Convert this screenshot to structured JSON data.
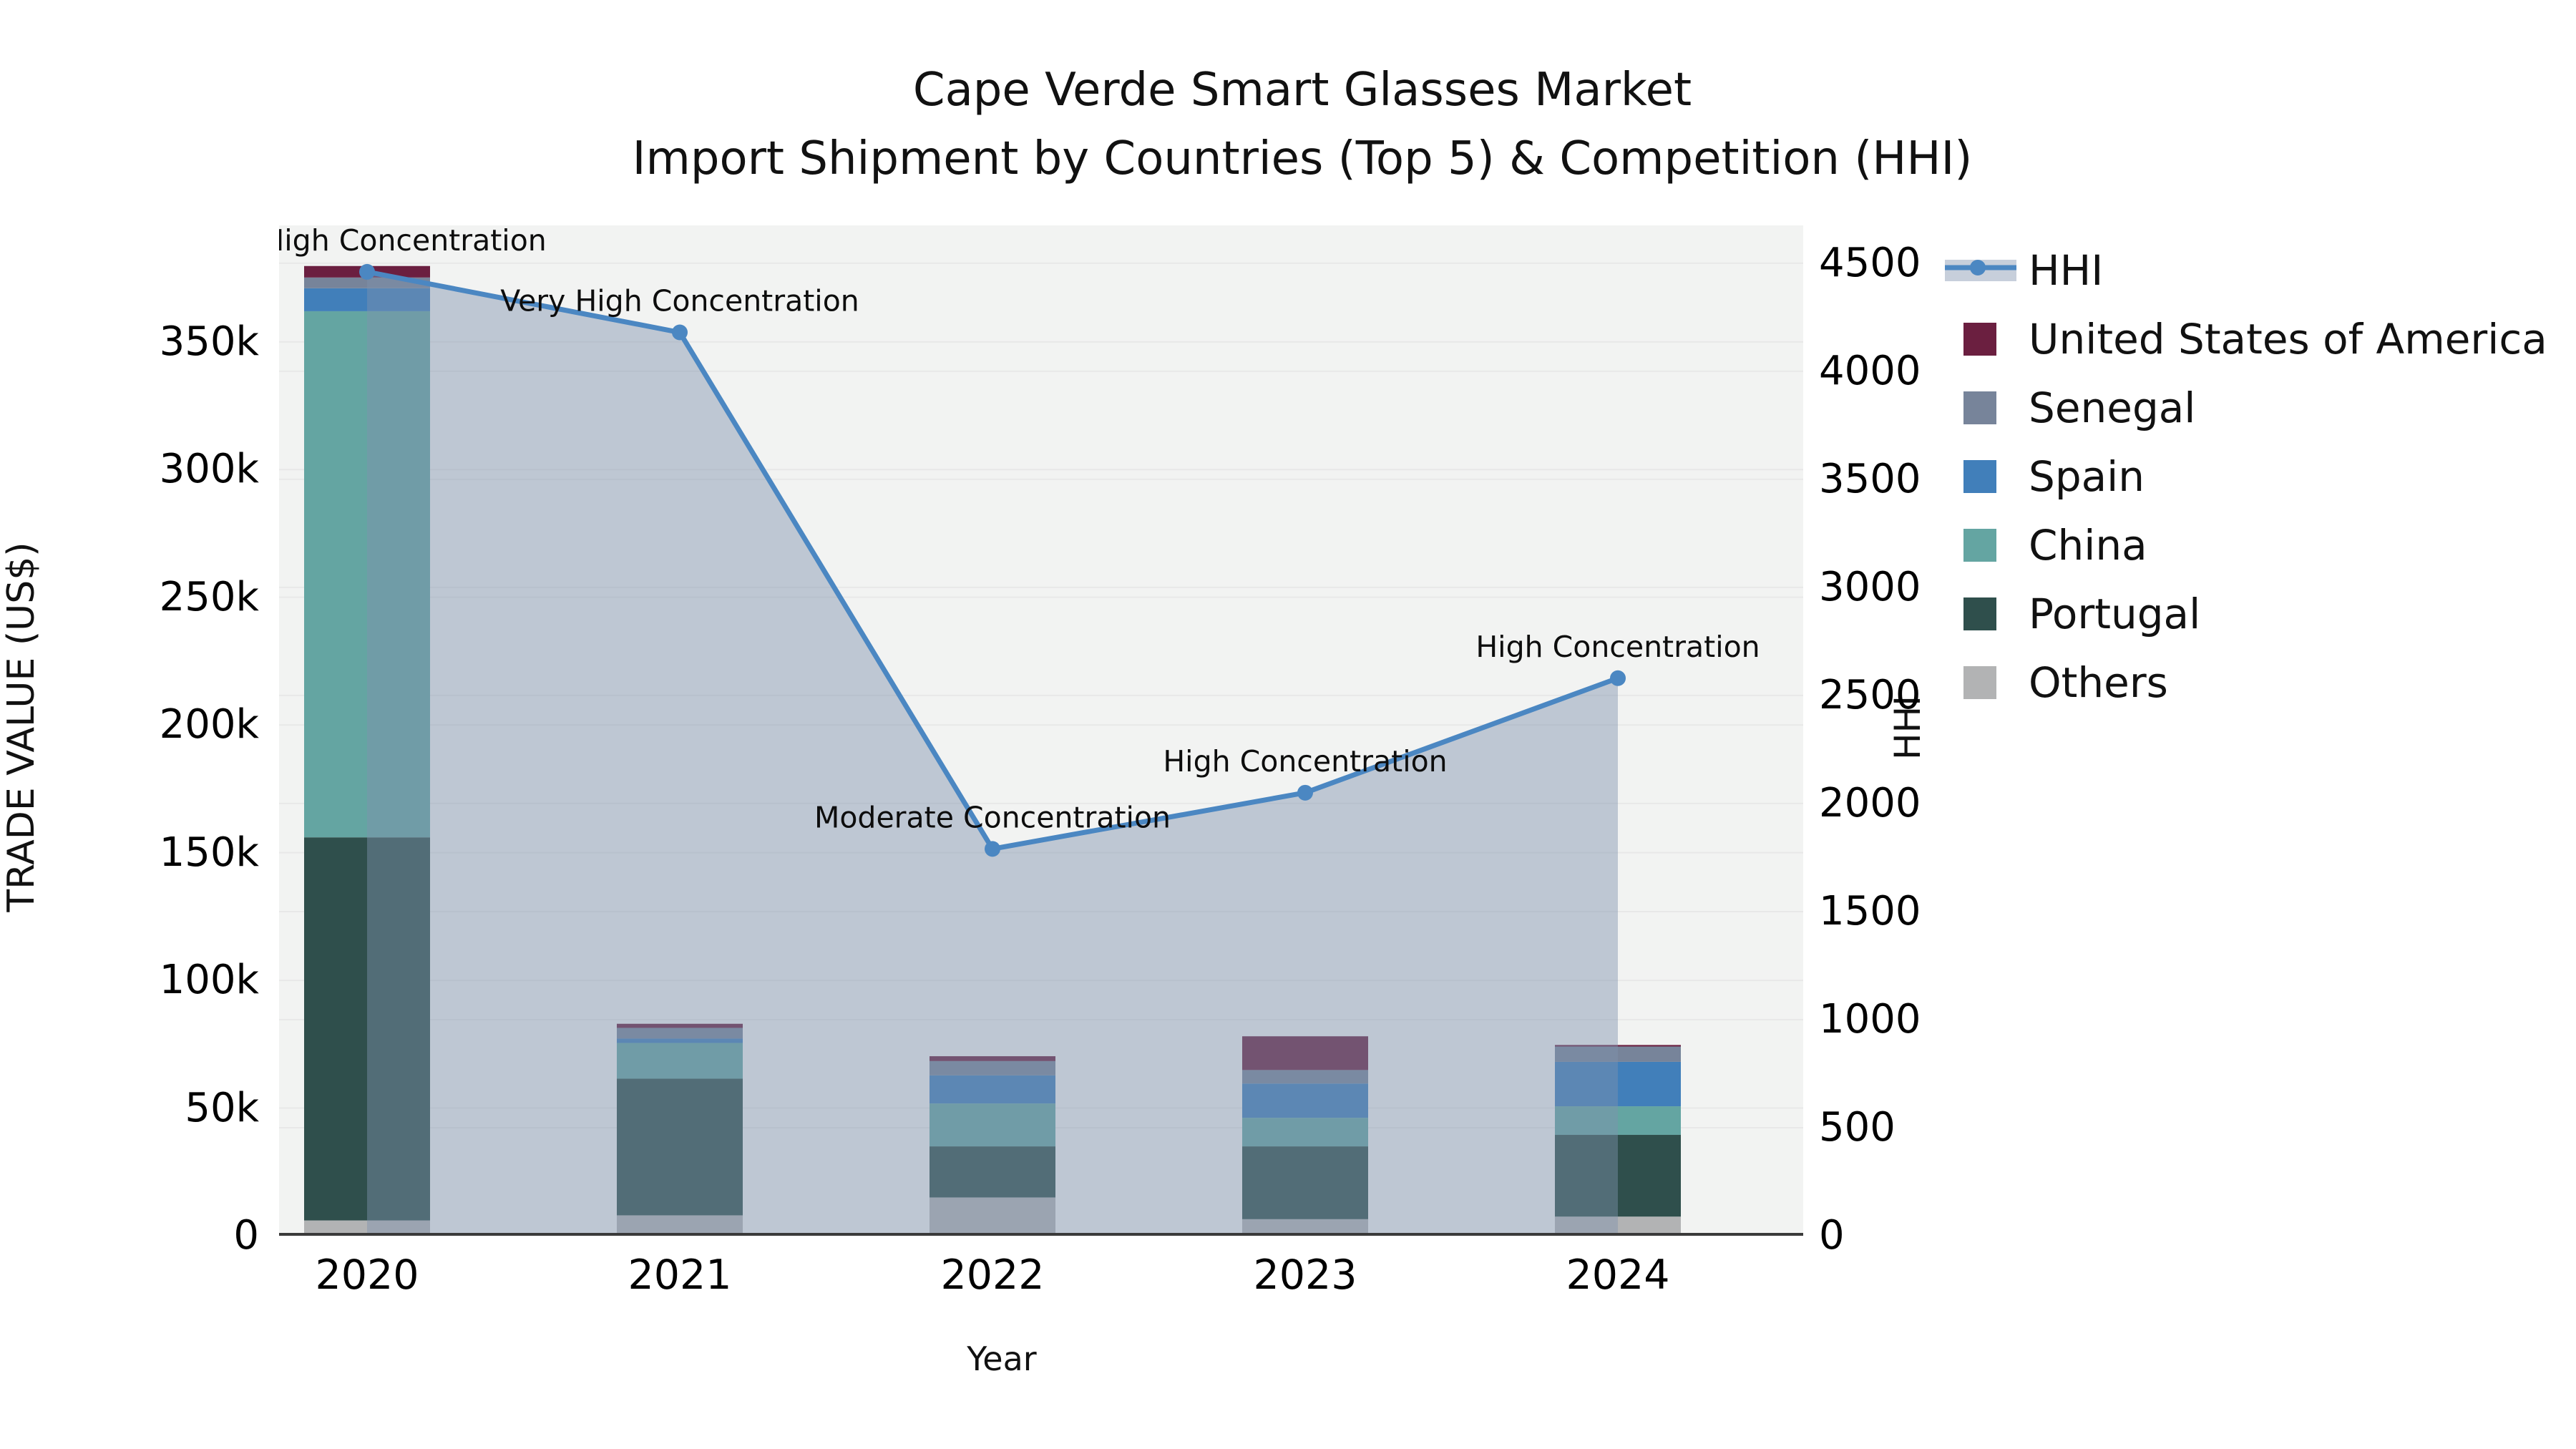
{
  "title": {
    "line1": "Cape Verde Smart Glasses Market",
    "line2": "Import Shipment by Countries (Top 5) & Competition (HHI)"
  },
  "chart_data": {
    "type": "bar+line",
    "categories": [
      "2020",
      "2021",
      "2022",
      "2023",
      "2024"
    ],
    "xlabel": "Year",
    "y_left": {
      "label": "TRADE VALUE (US$)",
      "ticks": [
        "0",
        "50k",
        "100k",
        "150k",
        "200k",
        "250k",
        "300k",
        "350k"
      ],
      "tick_values": [
        0,
        50000,
        100000,
        150000,
        200000,
        250000,
        300000,
        350000
      ],
      "max": 395600
    },
    "y_right": {
      "label": "HHI",
      "ticks": [
        "0",
        "500",
        "1000",
        "1500",
        "2000",
        "2500",
        "3000",
        "3500",
        "4000",
        "4500"
      ],
      "tick_values": [
        0,
        500,
        1000,
        1500,
        2000,
        2500,
        3000,
        3500,
        4000,
        4500
      ],
      "max": 4675
    },
    "stack_order_bottom_to_top": [
      "Others",
      "Portugal",
      "China",
      "Spain",
      "Senegal",
      "United States of America"
    ],
    "series": [
      {
        "name": "United States of America",
        "color": "#6b1f40",
        "values": [
          4500,
          1600,
          1900,
          13200,
          600
        ]
      },
      {
        "name": "Senegal",
        "color": "#77849a",
        "values": [
          4200,
          4200,
          5600,
          5300,
          6000
        ]
      },
      {
        "name": "Spain",
        "color": "#417fba",
        "values": [
          9000,
          1700,
          11000,
          13400,
          17400
        ]
      },
      {
        "name": "China",
        "color": "#64a5a2",
        "values": [
          206000,
          14000,
          16800,
          11200,
          11200
        ]
      },
      {
        "name": "Portugal",
        "color": "#2f4f4c",
        "values": [
          150000,
          53500,
          20000,
          28500,
          32000
        ]
      },
      {
        "name": "Others",
        "color": "#b2b3b4",
        "values": [
          6000,
          8000,
          15000,
          6500,
          7500
        ]
      }
    ],
    "line_series": {
      "name": "HHI",
      "color": "#4b87c2",
      "area_fill": "rgba(127,146,172,0.45)",
      "values": [
        4460,
        4180,
        1790,
        2050,
        2580
      ]
    },
    "annotations": [
      {
        "category": "2020",
        "text": "Very High Concentration"
      },
      {
        "category": "2021",
        "text": "Very High Concentration"
      },
      {
        "category": "2022",
        "text": "Moderate Concentration"
      },
      {
        "category": "2023",
        "text": "High Concentration"
      },
      {
        "category": "2024",
        "text": "High Concentration"
      }
    ],
    "legend": [
      {
        "label": "HHI",
        "type": "line",
        "color": "#4b87c2",
        "band": "#c7cfdb"
      },
      {
        "label": "United States of America",
        "type": "swatch",
        "color": "#6b1f40"
      },
      {
        "label": "Senegal",
        "type": "swatch",
        "color": "#77849a"
      },
      {
        "label": "Spain",
        "type": "swatch",
        "color": "#417fba"
      },
      {
        "label": "China",
        "type": "swatch",
        "color": "#64a5a2"
      },
      {
        "label": "Portugal",
        "type": "swatch",
        "color": "#2f4f4c"
      },
      {
        "label": "Others",
        "type": "swatch",
        "color": "#b2b3b4"
      }
    ],
    "grid_color": "#e8e8e8",
    "axis_color": "#3a3a3a",
    "plot_bg": "#f2f3f2"
  }
}
